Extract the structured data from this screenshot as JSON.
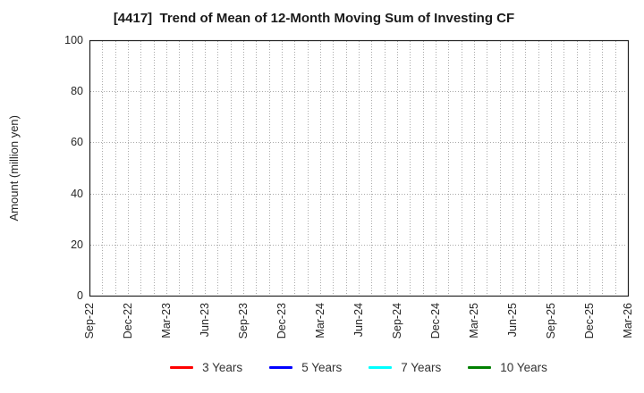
{
  "chart_data": {
    "type": "line",
    "title": "[4417]  Trend of Mean of 12-Month Moving Sum of Investing CF",
    "xlabel": "",
    "ylabel": "Amount (million yen)",
    "ylim": [
      0,
      100
    ],
    "yticks": [
      0,
      20,
      40,
      60,
      80,
      100
    ],
    "xticklabels": [
      "Sep-22",
      "Dec-22",
      "Mar-23",
      "Jun-23",
      "Sep-23",
      "Dec-23",
      "Mar-24",
      "Jun-24",
      "Sep-24",
      "Dec-24",
      "Mar-25",
      "Jun-25",
      "Sep-25",
      "Dec-25",
      "Mar-26"
    ],
    "xtick_interval_months": 3,
    "vertical_grid_every_months": 1,
    "grid": true,
    "grid_style": "dotted",
    "legend_position": "bottom-center",
    "series": [
      {
        "name": "3 Years",
        "color": "#ff0000",
        "values": []
      },
      {
        "name": "5 Years",
        "color": "#0000ff",
        "values": []
      },
      {
        "name": "7 Years",
        "color": "#00ffff",
        "values": []
      },
      {
        "name": "10 Years",
        "color": "#008000",
        "values": []
      }
    ],
    "note": "plot area is empty - no series data drawn"
  },
  "colors": {
    "background": "#ffffff",
    "axis": "#222222",
    "grid": "#aaaaaa",
    "title_text": "#1a1a1a",
    "tick_text": "#262626",
    "legend_text": "#333333"
  }
}
